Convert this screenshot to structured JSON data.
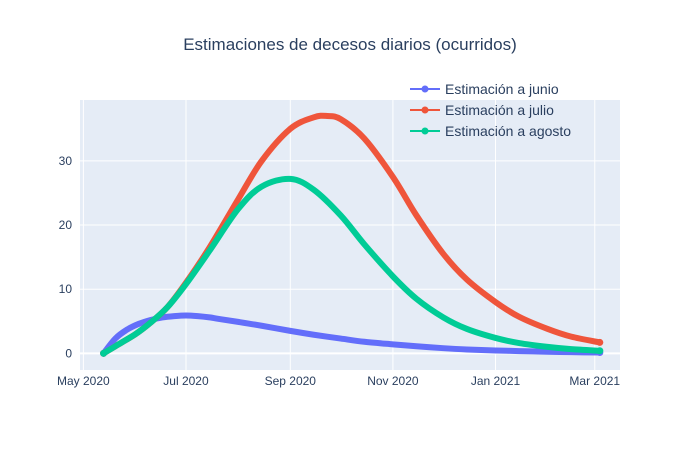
{
  "chart_data": {
    "type": "line",
    "title": "Estimaciones de decesos diarios (ocurridos)",
    "xlabel": "",
    "ylabel": "",
    "x_range": [
      "2020-04-29",
      "2021-03-16"
    ],
    "ylim": [
      -2.6,
      39.5
    ],
    "x_ticks": [
      {
        "date": "2020-05-01",
        "label": "May 2020"
      },
      {
        "date": "2020-07-01",
        "label": "Jul 2020"
      },
      {
        "date": "2020-09-01",
        "label": "Sep 2020"
      },
      {
        "date": "2020-11-01",
        "label": "Nov 2020"
      },
      {
        "date": "2021-01-01",
        "label": "Jan 2021"
      },
      {
        "date": "2021-03-01",
        "label": "Mar 2021"
      }
    ],
    "y_ticks": [
      0,
      10,
      20,
      30
    ],
    "grid": true,
    "legend_position": "top-right",
    "series": [
      {
        "name": "Estimación a junio",
        "color": "#636efa",
        "points": [
          [
            "2020-05-13",
            0
          ],
          [
            "2020-05-20",
            2.3
          ],
          [
            "2020-05-27",
            3.7
          ],
          [
            "2020-06-03",
            4.6
          ],
          [
            "2020-06-10",
            5.2
          ],
          [
            "2020-06-17",
            5.6
          ],
          [
            "2020-06-24",
            5.8
          ],
          [
            "2020-07-01",
            5.9
          ],
          [
            "2020-07-08",
            5.8
          ],
          [
            "2020-07-15",
            5.6
          ],
          [
            "2020-07-22",
            5.3
          ],
          [
            "2020-08-01",
            4.9
          ],
          [
            "2020-08-15",
            4.3
          ],
          [
            "2020-09-01",
            3.5
          ],
          [
            "2020-09-15",
            2.9
          ],
          [
            "2020-10-01",
            2.3
          ],
          [
            "2020-10-15",
            1.8
          ],
          [
            "2020-11-01",
            1.4
          ],
          [
            "2020-11-15",
            1.1
          ],
          [
            "2020-12-01",
            0.8
          ],
          [
            "2020-12-15",
            0.6
          ],
          [
            "2021-01-01",
            0.45
          ],
          [
            "2021-01-15",
            0.35
          ],
          [
            "2021-02-01",
            0.25
          ],
          [
            "2021-02-15",
            0.18
          ],
          [
            "2021-03-04",
            0.12
          ]
        ]
      },
      {
        "name": "Estimación a julio",
        "color": "#ef553b",
        "points": [
          [
            "2020-05-13",
            0
          ],
          [
            "2020-05-20",
            1.1
          ],
          [
            "2020-06-01",
            3.0
          ],
          [
            "2020-06-10",
            4.8
          ],
          [
            "2020-06-20",
            7.2
          ],
          [
            "2020-07-01",
            11.0
          ],
          [
            "2020-07-15",
            16.5
          ],
          [
            "2020-08-01",
            24.0
          ],
          [
            "2020-08-15",
            30.0
          ],
          [
            "2020-09-01",
            35.0
          ],
          [
            "2020-09-15",
            36.8
          ],
          [
            "2020-09-23",
            37.0
          ],
          [
            "2020-10-01",
            36.5
          ],
          [
            "2020-10-15",
            33.5
          ],
          [
            "2020-11-01",
            27.5
          ],
          [
            "2020-11-15",
            21.5
          ],
          [
            "2020-12-01",
            15.5
          ],
          [
            "2020-12-15",
            11.5
          ],
          [
            "2021-01-01",
            8.0
          ],
          [
            "2021-01-15",
            5.7
          ],
          [
            "2021-02-01",
            3.8
          ],
          [
            "2021-02-15",
            2.6
          ],
          [
            "2021-03-04",
            1.7
          ]
        ]
      },
      {
        "name": "Estimación a agosto",
        "color": "#00cc96",
        "points": [
          [
            "2020-05-13",
            0
          ],
          [
            "2020-05-20",
            1.1
          ],
          [
            "2020-06-01",
            3.0
          ],
          [
            "2020-06-10",
            4.8
          ],
          [
            "2020-06-20",
            7.2
          ],
          [
            "2020-07-01",
            10.8
          ],
          [
            "2020-07-15",
            16.0
          ],
          [
            "2020-08-01",
            22.5
          ],
          [
            "2020-08-15",
            26.0
          ],
          [
            "2020-09-01",
            27.2
          ],
          [
            "2020-09-15",
            25.5
          ],
          [
            "2020-10-01",
            21.5
          ],
          [
            "2020-10-15",
            17.0
          ],
          [
            "2020-11-01",
            12.0
          ],
          [
            "2020-11-15",
            8.5
          ],
          [
            "2020-12-01",
            5.6
          ],
          [
            "2020-12-15",
            3.8
          ],
          [
            "2021-01-01",
            2.4
          ],
          [
            "2021-01-15",
            1.6
          ],
          [
            "2021-02-01",
            1.0
          ],
          [
            "2021-02-15",
            0.65
          ],
          [
            "2021-03-04",
            0.4
          ]
        ]
      }
    ]
  }
}
